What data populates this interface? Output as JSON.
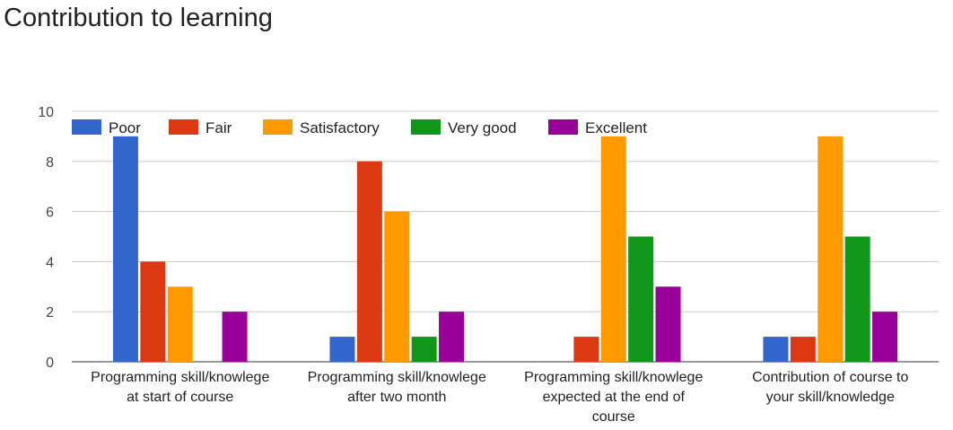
{
  "chart_data": {
    "type": "bar",
    "title": "Contribution to learning",
    "categories": [
      [
        "Programming skill/knowlege",
        "at start of course"
      ],
      [
        "Programming skill/knowlege",
        "after two month"
      ],
      [
        "Programming skill/knowlege",
        "expected at the end of",
        "course"
      ],
      [
        "Contribution of course to",
        "your skill/knowledge"
      ]
    ],
    "series": [
      {
        "name": "Poor",
        "color": "#3366cc",
        "values": [
          9,
          1,
          0,
          1
        ]
      },
      {
        "name": "Fair",
        "color": "#dc3912",
        "values": [
          4,
          8,
          1,
          1
        ]
      },
      {
        "name": "Satisfactory",
        "color": "#ff9900",
        "values": [
          3,
          6,
          9,
          9
        ]
      },
      {
        "name": "Very good",
        "color": "#109618",
        "values": [
          0,
          1,
          5,
          5
        ]
      },
      {
        "name": "Excellent",
        "color": "#990099",
        "values": [
          2,
          2,
          3,
          2
        ]
      }
    ],
    "ylim": [
      0,
      10
    ],
    "yticks": [
      0,
      2,
      4,
      6,
      8,
      10
    ],
    "grid": true,
    "legend_position": "top"
  }
}
